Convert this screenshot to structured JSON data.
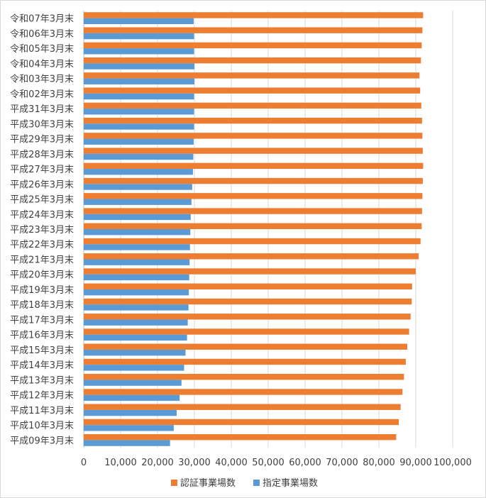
{
  "chart_data": {
    "type": "bar",
    "orientation": "horizontal",
    "categories": [
      "令和07年3月末",
      "令和06年3月末",
      "令和05年3月末",
      "令和04年3月末",
      "令和03年3月末",
      "令和02年3月末",
      "平成31年3月末",
      "平成30年3月末",
      "平成29年3月末",
      "平成28年3月末",
      "平成27年3月末",
      "平成26年3月末",
      "平成25年3月末",
      "平成24年3月末",
      "平成23年3月末",
      "平成22年3月末",
      "平成21年3月末",
      "平成20年3月末",
      "平成19年3月末",
      "平成18年3月末",
      "平成17年3月末",
      "平成16年3月末",
      "平成15年3月末",
      "平成14年3月末",
      "平成13年3月末",
      "平成12年3月末",
      "平成11年3月末",
      "平成10年3月末",
      "平成09年3月末"
    ],
    "series": [
      {
        "name": "認証事業場数",
        "color": "#ED7D31",
        "values": [
          92000,
          91800,
          91600,
          91400,
          91000,
          91200,
          91500,
          91700,
          91800,
          91900,
          92000,
          91900,
          91800,
          91700,
          91600,
          91300,
          90800,
          90000,
          89000,
          88900,
          88600,
          88200,
          87700,
          87300,
          86800,
          86400,
          85900,
          85400,
          84700
        ]
      },
      {
        "name": "指定事業場数",
        "color": "#5B9BD5",
        "values": [
          29800,
          29900,
          29900,
          30000,
          30000,
          29900,
          29900,
          29900,
          29800,
          29700,
          29600,
          29400,
          29200,
          29000,
          28900,
          28800,
          28700,
          28600,
          28500,
          28400,
          28200,
          28000,
          27600,
          27200,
          26500,
          26000,
          25200,
          24400,
          23400
        ]
      }
    ],
    "x_ticks": [
      "0",
      "10,000",
      "20,000",
      "30,000",
      "40,000",
      "50,000",
      "60,000",
      "70,000",
      "80,000",
      "90,000",
      "100,000"
    ],
    "xlim": [
      0,
      100000
    ],
    "grid": true,
    "legend": "bottom"
  }
}
